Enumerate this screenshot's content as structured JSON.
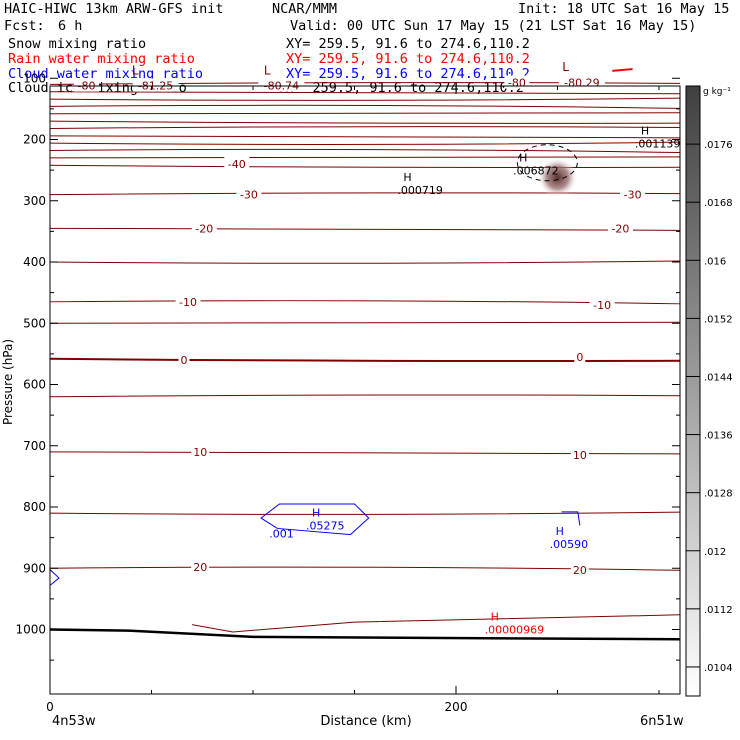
{
  "header": {
    "title": "HAIC-HIWC 13km ARW-GFS init",
    "org": "NCAR/MMM",
    "init": "Init: 18 UTC Sat 16 May 15",
    "fcst_label": "Fcst:",
    "fcst_value": "6 h",
    "valid": "Valid: 00 UTC Sun 17 May 15 (21 LST Sat 16 May 15)"
  },
  "fields": [
    {
      "label": "Snow mixing ratio",
      "xy": "XY= 259.5, 91.6 to 274.6,110.2",
      "color": "#000000"
    },
    {
      "label": "Rain water mixing ratio",
      "xy": "XY= 259.5, 91.6 to 274.6,110.2",
      "color": "#ff0000"
    },
    {
      "label": "Cloud water mixing ratio",
      "xy": "XY= 259.5, 91.6 to 274.6,110.2",
      "color": "#0000ff"
    },
    {
      "label": "Cloud ice mixing ratio",
      "xy": "XY= 259.5, 91.6 to 274.6,110.2",
      "color": "#000000"
    }
  ],
  "chart_data": {
    "type": "contour-cross-section",
    "xlabel": "Distance (km)",
    "ylabel": "Pressure (hPa)",
    "x_ticks": [
      "0",
      "200"
    ],
    "x_tick_values": [
      0,
      200
    ],
    "xlim": [
      0,
      310
    ],
    "y_ticks": [
      "100",
      "200",
      "300",
      "400",
      "500",
      "600",
      "700",
      "800",
      "900",
      "1000"
    ],
    "y_tick_values": [
      100,
      200,
      300,
      400,
      500,
      600,
      700,
      800,
      900,
      1000
    ],
    "ylim": [
      50,
      1050
    ],
    "endpoints": {
      "left": "4n53w",
      "right": "6n51w"
    },
    "temperature_contour_color": "#800000",
    "temperature_labels": [
      {
        "text": "-80",
        "x": 18,
        "p": 112
      },
      {
        "text": "-81.25",
        "x": 52,
        "p": 112
      },
      {
        "text": "-80.74",
        "x": 114,
        "p": 112
      },
      {
        "text": "-80",
        "x": 230,
        "p": 107
      },
      {
        "text": "-80.29",
        "x": 262,
        "p": 107
      },
      {
        "text": "-40",
        "x": 92,
        "p": 240
      },
      {
        "text": "-30",
        "x": 98,
        "p": 290
      },
      {
        "text": "-30",
        "x": 287,
        "p": 290
      },
      {
        "text": "-20",
        "x": 76,
        "p": 345
      },
      {
        "text": "-20",
        "x": 281,
        "p": 345
      },
      {
        "text": "-10",
        "x": 68,
        "p": 465
      },
      {
        "text": "-10",
        "x": 272,
        "p": 470
      },
      {
        "text": "0",
        "x": 66,
        "p": 560
      },
      {
        "text": "0",
        "x": 261,
        "p": 555
      },
      {
        "text": "10",
        "x": 74,
        "p": 710
      },
      {
        "text": "10",
        "x": 261,
        "p": 715
      },
      {
        "text": "20",
        "x": 74,
        "p": 898
      },
      {
        "text": "20",
        "x": 261,
        "p": 903
      }
    ],
    "low_markers": [
      {
        "text": "L",
        "x": 42,
        "p": 94
      },
      {
        "text": "L",
        "x": 107,
        "p": 94
      },
      {
        "text": "L",
        "x": 254,
        "p": 88
      }
    ],
    "highs": [
      {
        "text": ".000719",
        "x": 179,
        "p": 284,
        "color": "#000000"
      },
      {
        "text": ".006872",
        "x": 236,
        "p": 252,
        "color": "#000000"
      },
      {
        "text": ".001139",
        "x": 296,
        "p": 208,
        "color": "#000000"
      },
      {
        "text": ".05275",
        "x": 134,
        "p": 832,
        "color": "#0000ff"
      },
      {
        "text": ".00590",
        "x": 254,
        "p": 862,
        "color": "#0000ff"
      },
      {
        "text": ".00000969",
        "x": 222,
        "p": 1002,
        "color": "#ff0000"
      }
    ],
    "cloud_water_low_label": {
      "text": ".001",
      "x": 108,
      "p": 850
    },
    "colorbar": {
      "unit": "g kg⁻¹",
      "labels": [
        ".0176",
        ".0168",
        ".016",
        ".0152",
        ".0144",
        ".0136",
        ".0128",
        ".012",
        ".0112",
        ".0104"
      ],
      "label_values": [
        0.0176,
        0.0168,
        0.016,
        0.0152,
        0.0144,
        0.0136,
        0.0128,
        0.012,
        0.0112,
        0.0104
      ],
      "range": [
        0.01,
        0.0184
      ],
      "color_top": "#404040",
      "color_bottom": "#ffffff"
    }
  }
}
